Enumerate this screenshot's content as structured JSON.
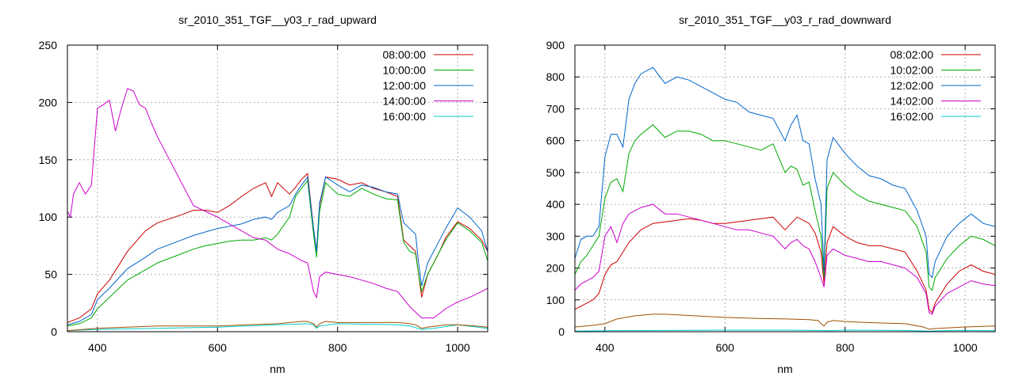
{
  "chart_data": [
    {
      "type": "line",
      "title": "sr_2010_351_TGF__y03_r_rad_upward",
      "xlabel": "nm",
      "ylabel": "",
      "xlim": [
        350,
        1050
      ],
      "ylim": [
        0,
        250
      ],
      "xticks": [
        400,
        600,
        800,
        1000
      ],
      "yticks": [
        0,
        50,
        100,
        150,
        200,
        250
      ],
      "grid": true,
      "legend_position": "top-right",
      "series": [
        {
          "name": "08:00:00",
          "color": "#cc0000",
          "x": [
            350,
            370,
            390,
            400,
            420,
            450,
            480,
            500,
            540,
            560,
            580,
            600,
            620,
            640,
            660,
            680,
            690,
            700,
            720,
            730,
            740,
            750,
            760,
            765,
            770,
            780,
            800,
            820,
            840,
            860,
            880,
            900,
            910,
            920,
            930,
            935,
            940,
            950,
            970,
            980,
            1000,
            1020,
            1040,
            1050
          ],
          "y": [
            8,
            12,
            20,
            33,
            45,
            70,
            88,
            95,
            102,
            106,
            106,
            104,
            110,
            118,
            125,
            130,
            118,
            130,
            120,
            126,
            133,
            138,
            90,
            70,
            110,
            135,
            133,
            128,
            130,
            125,
            122,
            118,
            80,
            75,
            70,
            50,
            30,
            50,
            70,
            82,
            96,
            90,
            80,
            70
          ]
        },
        {
          "name": "10:00:00",
          "color": "#00aa00",
          "x": [
            350,
            370,
            390,
            400,
            420,
            450,
            480,
            500,
            540,
            560,
            580,
            600,
            620,
            640,
            660,
            680,
            690,
            700,
            720,
            730,
            740,
            750,
            760,
            765,
            770,
            780,
            800,
            820,
            840,
            860,
            880,
            900,
            910,
            920,
            930,
            935,
            940,
            950,
            970,
            980,
            1000,
            1020,
            1040,
            1050
          ],
          "y": [
            5,
            7,
            12,
            20,
            30,
            45,
            54,
            60,
            68,
            72,
            75,
            77,
            79,
            80,
            80,
            82,
            80,
            85,
            100,
            118,
            125,
            132,
            85,
            65,
            105,
            130,
            120,
            118,
            125,
            120,
            116,
            115,
            78,
            70,
            68,
            50,
            35,
            50,
            70,
            80,
            95,
            88,
            78,
            62
          ]
        },
        {
          "name": "12:00:00",
          "color": "#0066cc",
          "x": [
            350,
            370,
            390,
            400,
            420,
            450,
            480,
            500,
            540,
            560,
            580,
            600,
            620,
            640,
            660,
            680,
            690,
            700,
            720,
            730,
            740,
            750,
            760,
            765,
            770,
            780,
            800,
            820,
            840,
            860,
            880,
            900,
            910,
            920,
            930,
            935,
            940,
            950,
            970,
            980,
            1000,
            1020,
            1040,
            1050
          ],
          "y": [
            6,
            9,
            15,
            28,
            38,
            55,
            65,
            72,
            80,
            84,
            87,
            90,
            92,
            94,
            98,
            100,
            98,
            104,
            110,
            120,
            128,
            135,
            90,
            70,
            112,
            135,
            128,
            122,
            128,
            126,
            122,
            120,
            95,
            90,
            85,
            60,
            40,
            60,
            80,
            90,
            108,
            100,
            88,
            70
          ]
        },
        {
          "name": "14:00:00",
          "color": "#cc00cc",
          "x": [
            350,
            355,
            360,
            370,
            380,
            390,
            400,
            410,
            420,
            430,
            440,
            450,
            460,
            470,
            480,
            490,
            500,
            510,
            520,
            540,
            560,
            580,
            600,
            620,
            640,
            660,
            680,
            700,
            720,
            740,
            750,
            760,
            765,
            770,
            780,
            800,
            820,
            840,
            860,
            880,
            900,
            920,
            940,
            960,
            980,
            1000,
            1020,
            1040,
            1050
          ],
          "y": [
            105,
            100,
            120,
            130,
            120,
            128,
            195,
            198,
            202,
            175,
            195,
            212,
            210,
            198,
            195,
            182,
            170,
            160,
            150,
            130,
            110,
            105,
            100,
            94,
            88,
            82,
            80,
            72,
            68,
            62,
            60,
            35,
            30,
            48,
            52,
            50,
            48,
            45,
            42,
            38,
            35,
            22,
            12,
            12,
            20,
            26,
            30,
            35,
            38
          ]
        },
        {
          "name": "16:00:00",
          "color": "#00cccc",
          "x": [
            350,
            400,
            500,
            600,
            700,
            750,
            760,
            765,
            770,
            800,
            900,
            920,
            940,
            960,
            1000,
            1050
          ],
          "y": [
            1,
            2,
            3,
            4,
            6,
            7,
            6,
            3,
            5,
            7,
            6,
            5,
            2,
            3,
            6,
            3
          ]
        },
        {
          "name": "",
          "color": "#a05000",
          "x": [
            350,
            400,
            450,
            500,
            550,
            600,
            650,
            700,
            720,
            740,
            750,
            760,
            765,
            770,
            780,
            800,
            850,
            900,
            920,
            930,
            940,
            950,
            980,
            1000,
            1030,
            1050
          ],
          "y": [
            1,
            3,
            4,
            5,
            5,
            5,
            6,
            7,
            8,
            9,
            9,
            7,
            4,
            7,
            9,
            8,
            8,
            8,
            7,
            6,
            3,
            4,
            6,
            6,
            5,
            4
          ]
        }
      ]
    },
    {
      "type": "line",
      "title": "sr_2010_351_TGF__y03_r_rad_downward",
      "xlabel": "nm",
      "ylabel": "",
      "xlim": [
        350,
        1050
      ],
      "ylim": [
        0,
        900
      ],
      "xticks": [
        400,
        600,
        800,
        1000
      ],
      "yticks": [
        0,
        100,
        200,
        300,
        400,
        500,
        600,
        700,
        800,
        900
      ],
      "grid": true,
      "legend_position": "top-right",
      "series": [
        {
          "name": "08:02:00",
          "color": "#cc0000",
          "x": [
            350,
            360,
            370,
            380,
            390,
            400,
            410,
            420,
            430,
            440,
            450,
            460,
            480,
            500,
            520,
            540,
            560,
            580,
            600,
            620,
            640,
            660,
            680,
            700,
            710,
            720,
            730,
            740,
            750,
            760,
            765,
            770,
            780,
            800,
            820,
            840,
            860,
            880,
            900,
            920,
            935,
            940,
            945,
            950,
            970,
            990,
            1010,
            1030,
            1050
          ],
          "y": [
            70,
            80,
            90,
            100,
            120,
            180,
            210,
            220,
            250,
            280,
            300,
            320,
            340,
            345,
            350,
            355,
            350,
            340,
            340,
            345,
            350,
            355,
            360,
            320,
            340,
            360,
            350,
            340,
            310,
            250,
            150,
            280,
            330,
            300,
            280,
            270,
            270,
            260,
            250,
            190,
            130,
            70,
            60,
            90,
            150,
            190,
            210,
            190,
            180
          ]
        },
        {
          "name": "10:02:00",
          "color": "#00aa00",
          "x": [
            350,
            360,
            370,
            380,
            390,
            400,
            410,
            420,
            430,
            440,
            450,
            460,
            480,
            500,
            520,
            540,
            560,
            580,
            600,
            620,
            640,
            660,
            680,
            700,
            710,
            720,
            730,
            740,
            750,
            760,
            765,
            770,
            780,
            800,
            820,
            840,
            860,
            880,
            900,
            920,
            935,
            940,
            945,
            950,
            970,
            990,
            1010,
            1030,
            1050
          ],
          "y": [
            180,
            220,
            240,
            270,
            300,
            420,
            470,
            480,
            440,
            560,
            600,
            620,
            650,
            610,
            630,
            630,
            620,
            600,
            600,
            590,
            580,
            570,
            590,
            500,
            520,
            510,
            460,
            470,
            380,
            300,
            170,
            450,
            500,
            460,
            430,
            410,
            400,
            390,
            380,
            330,
            250,
            140,
            130,
            170,
            230,
            270,
            300,
            290,
            270
          ]
        },
        {
          "name": "12:02:00",
          "color": "#0066cc",
          "x": [
            350,
            360,
            370,
            380,
            390,
            400,
            410,
            420,
            430,
            440,
            450,
            460,
            480,
            500,
            520,
            540,
            560,
            580,
            600,
            620,
            640,
            660,
            680,
            700,
            710,
            720,
            730,
            740,
            750,
            760,
            765,
            770,
            780,
            800,
            820,
            840,
            860,
            880,
            900,
            920,
            935,
            940,
            945,
            950,
            970,
            990,
            1010,
            1030,
            1050
          ],
          "y": [
            230,
            290,
            300,
            300,
            330,
            550,
            620,
            620,
            580,
            730,
            780,
            810,
            830,
            780,
            800,
            790,
            770,
            750,
            730,
            720,
            690,
            680,
            670,
            600,
            650,
            680,
            600,
            590,
            480,
            400,
            190,
            540,
            610,
            560,
            520,
            490,
            480,
            460,
            450,
            380,
            300,
            180,
            170,
            220,
            300,
            340,
            370,
            340,
            330
          ]
        },
        {
          "name": "14:02:00",
          "color": "#cc00cc",
          "x": [
            350,
            360,
            370,
            380,
            390,
            400,
            410,
            420,
            430,
            440,
            450,
            460,
            480,
            500,
            520,
            540,
            560,
            580,
            600,
            620,
            640,
            660,
            680,
            700,
            710,
            720,
            730,
            740,
            750,
            760,
            765,
            770,
            780,
            800,
            820,
            840,
            860,
            880,
            900,
            920,
            935,
            940,
            945,
            950,
            970,
            990,
            1010,
            1030,
            1050
          ],
          "y": [
            130,
            150,
            160,
            170,
            190,
            300,
            330,
            280,
            340,
            370,
            380,
            390,
            400,
            370,
            370,
            360,
            350,
            340,
            330,
            320,
            320,
            310,
            300,
            260,
            280,
            290,
            270,
            260,
            220,
            170,
            140,
            240,
            260,
            240,
            230,
            220,
            220,
            210,
            200,
            170,
            120,
            60,
            55,
            80,
            120,
            140,
            160,
            150,
            145
          ]
        },
        {
          "name": "16:02:00",
          "color": "#00cccc",
          "x": [
            350,
            400,
            500,
            600,
            700,
            760,
            770,
            800,
            900,
            940,
            960,
            1000,
            1050
          ],
          "y": [
            2,
            3,
            4,
            5,
            5,
            4,
            3,
            5,
            4,
            2,
            3,
            4,
            3
          ]
        },
        {
          "name": "",
          "color": "#a05000",
          "x": [
            350,
            380,
            400,
            420,
            450,
            480,
            500,
            550,
            600,
            650,
            700,
            740,
            755,
            760,
            765,
            770,
            780,
            800,
            850,
            900,
            930,
            940,
            950,
            1000,
            1050
          ],
          "y": [
            15,
            20,
            25,
            40,
            50,
            55,
            55,
            50,
            45,
            42,
            40,
            38,
            35,
            25,
            18,
            30,
            35,
            32,
            28,
            25,
            15,
            8,
            10,
            15,
            18
          ]
        }
      ]
    }
  ]
}
